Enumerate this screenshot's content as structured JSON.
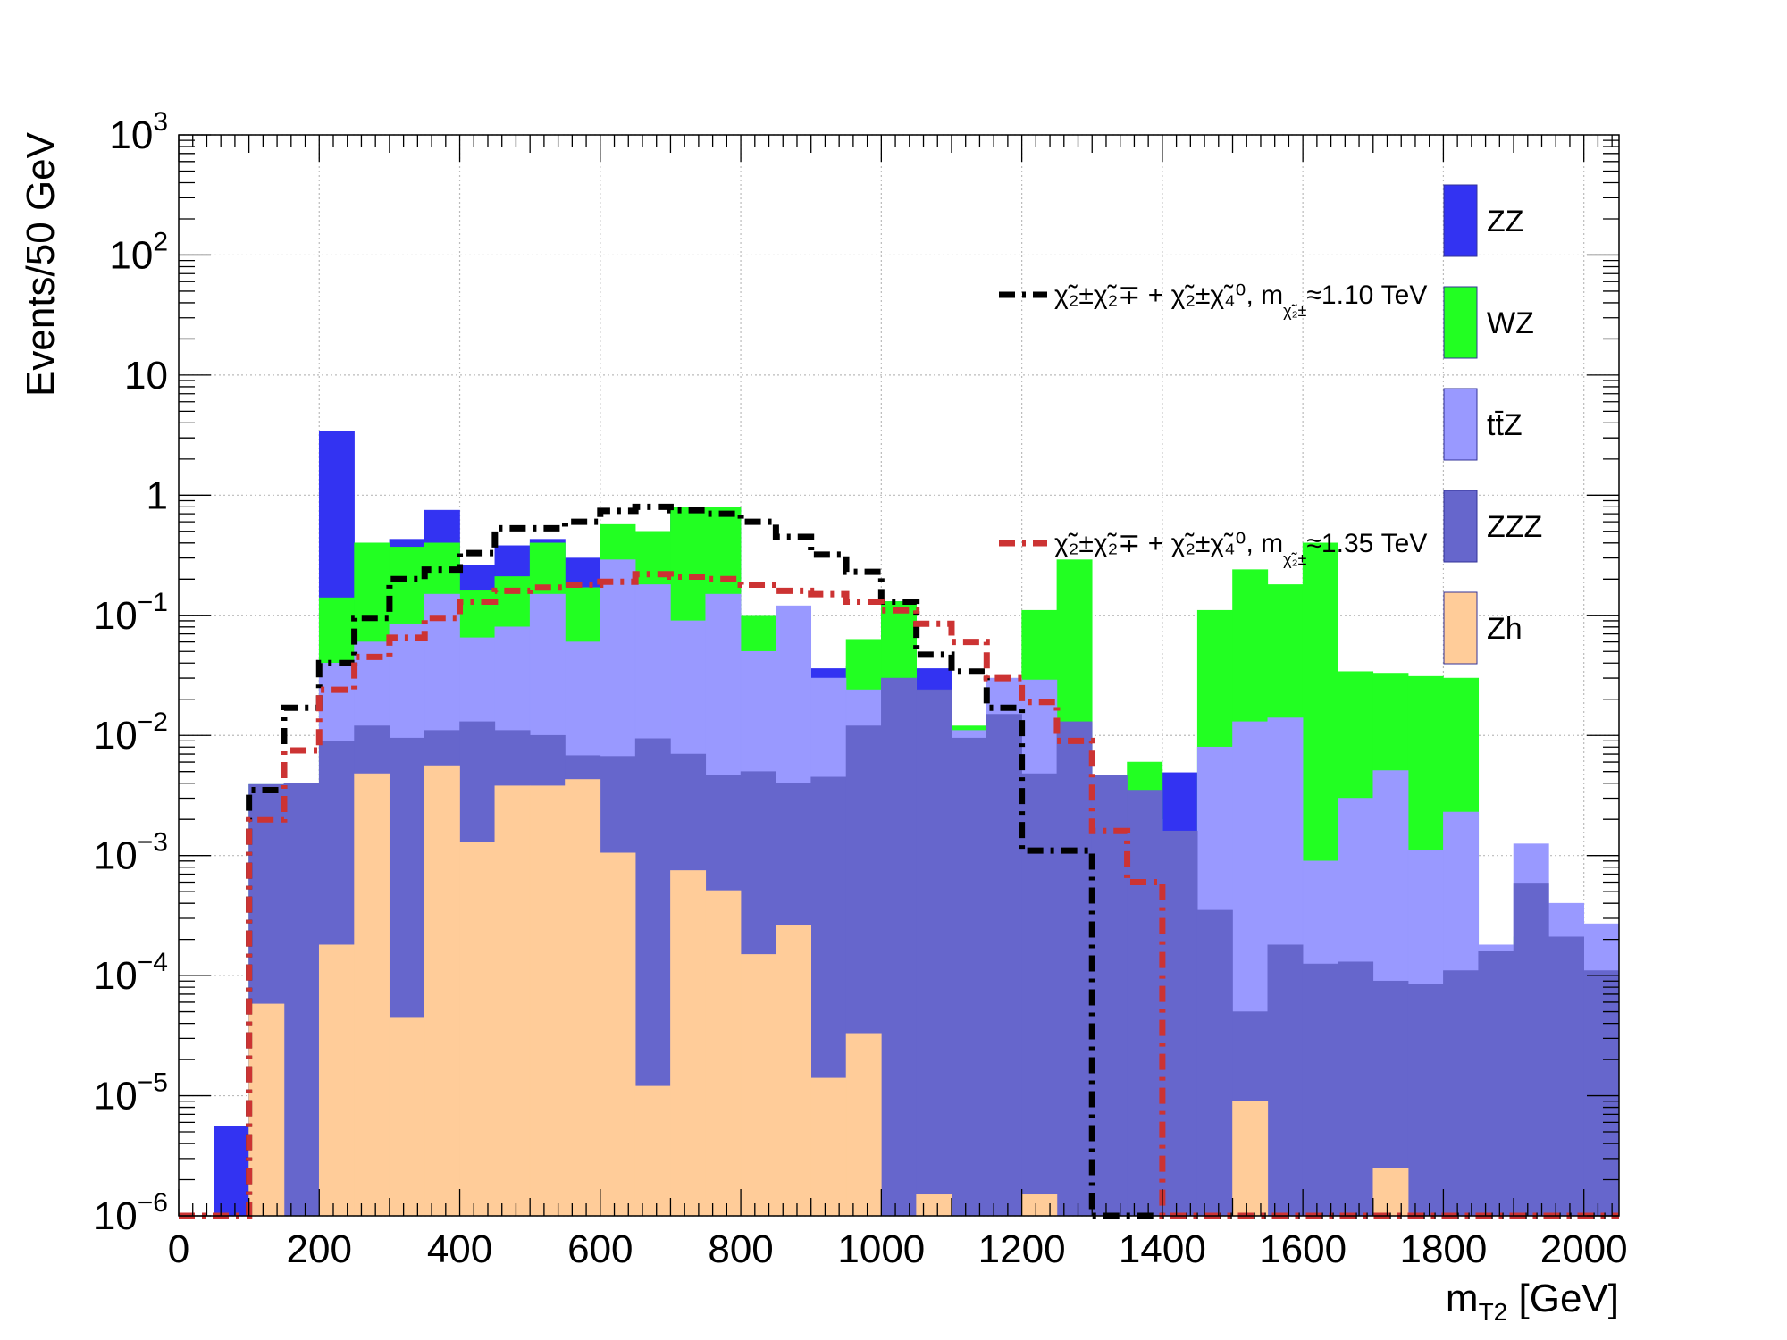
{
  "chart_data": {
    "type": "histogram",
    "ylabel": "Events/50 GeV",
    "xlabel": "m",
    "xlabel_sub": "T2",
    "xlabel_unit": "[GeV]",
    "xlim": [
      0,
      2050
    ],
    "ylim": [
      1e-06,
      1000
    ],
    "yscale": "log",
    "grid": true,
    "bin_width": 50,
    "x_ticks": [
      0,
      200,
      400,
      600,
      800,
      1000,
      1200,
      1400,
      1600,
      1800,
      2000
    ],
    "y_ticks": [
      {
        "value": 1e-06,
        "base": "10",
        "exp": "−6"
      },
      {
        "value": 1e-05,
        "base": "10",
        "exp": "−5"
      },
      {
        "value": 0.0001,
        "base": "10",
        "exp": "−4"
      },
      {
        "value": 0.001,
        "base": "10",
        "exp": "−3"
      },
      {
        "value": 0.01,
        "base": "10",
        "exp": "−2"
      },
      {
        "value": 0.1,
        "base": "10",
        "exp": "−1"
      },
      {
        "value": 1,
        "base": "1",
        "exp": ""
      },
      {
        "value": 10,
        "base": "10",
        "exp": ""
      },
      {
        "value": 100,
        "base": "10",
        "exp": "2"
      },
      {
        "value": 1000,
        "base": "10",
        "exp": "3"
      }
    ],
    "stack_order_bottom_to_top": [
      "Zh",
      "ZZZ",
      "ttZ",
      "WZ",
      "ZZ"
    ],
    "stack_cumulative_tops": {
      "Zh": [
        0,
        0,
        5.8e-05,
        0,
        0.00018,
        0.0048,
        4.5e-05,
        0.0056,
        0.0013,
        0.0038,
        0.0038,
        0.0043,
        0.00105,
        1.2e-05,
        0.00075,
        0.00051,
        0.00015,
        0.00026,
        1.4e-05,
        3.3e-05,
        0,
        1.5e-06,
        0,
        0,
        1.5e-06,
        0,
        0,
        0,
        0,
        0,
        9e-06,
        0,
        0,
        0,
        2.5e-06,
        0,
        0,
        0,
        0,
        0,
        0
      ],
      "ZZZ": [
        0,
        0,
        0.0039,
        0.004,
        0.009,
        0.012,
        0.0095,
        0.011,
        0.013,
        0.011,
        0.01,
        0.0068,
        0.0067,
        0.0094,
        0.007,
        0.0047,
        0.005,
        0.004,
        0.0045,
        0.012,
        0.03,
        0.024,
        0.0095,
        0.015,
        0.0048,
        0.013,
        0.0047,
        0.0035,
        0.0016,
        0.00035,
        5e-05,
        0.00018,
        0.000125,
        0.00013,
        9e-05,
        8.5e-05,
        0.00011,
        0.00016,
        0.00059,
        0.00021,
        0.00011
      ],
      "ttZ": [
        0,
        0,
        0.0039,
        0.004,
        0.04,
        0.06,
        0.085,
        0.15,
        0.065,
        0.08,
        0.15,
        0.06,
        0.29,
        0.18,
        0.09,
        0.15,
        0.05,
        0.12,
        0.03,
        0.024,
        0.017,
        0.011,
        0.011,
        0.03,
        0.029,
        0.009,
        0.0004,
        0.002,
        0.0015,
        0.008,
        0.013,
        0.014,
        0.0009,
        0.003,
        0.0051,
        0.0011,
        0.0023,
        0.00018,
        0.00125,
        0.0004,
        0.00027
      ],
      "WZ": [
        0,
        0,
        0.0039,
        0.004,
        0.14,
        0.4,
        0.37,
        0.4,
        0.16,
        0.21,
        0.4,
        0.17,
        0.57,
        0.5,
        0.8,
        0.8,
        0.1,
        0.07,
        0.021,
        0.063,
        0.13,
        0.016,
        0.012,
        0.01,
        0.11,
        0.29,
        0.0046,
        0.006,
        0.00036,
        0.11,
        0.24,
        0.18,
        0.4,
        0.034,
        0.033,
        0.031,
        0.03,
        1.7e-05,
        0.00021,
        0.00011,
        0.00014
      ],
      "ZZ": [
        0,
        5.6e-06,
        0.0039,
        0.004,
        3.4,
        0.4,
        0.43,
        0.75,
        0.26,
        0.38,
        0.43,
        0.3,
        0.37,
        0.18,
        0.8,
        0.8,
        0.1,
        0.015,
        0.036,
        0.038,
        0.13,
        0.036,
        0.009,
        0.014,
        0.0036,
        0.0024,
        0.0023,
        0.0036,
        0.0049,
        0.0012,
        0.00075,
        0.00062,
        0.001,
        0.00021,
        0.00023,
        0.00022,
        0.000105,
        8.3e-05,
        2.9e-05,
        0.0002,
        0.000135
      ]
    },
    "signal_series": [
      {
        "name": "m≈ 1.10 TeV",
        "color": "#000000",
        "values": [
          1e-06,
          1e-06,
          0.0035,
          0.017,
          0.04,
          0.095,
          0.2,
          0.24,
          0.33,
          0.53,
          0.53,
          0.6,
          0.74,
          0.8,
          0.75,
          0.7,
          0.6,
          0.45,
          0.32,
          0.23,
          0.13,
          0.047,
          0.034,
          0.017,
          0.0011,
          0.0011,
          1e-06,
          1e-06,
          1e-06,
          1e-06,
          1e-06,
          1e-06,
          1e-06,
          1e-06,
          1e-06,
          1e-06,
          1e-06,
          1e-06,
          1e-06,
          1e-06,
          1e-06
        ]
      },
      {
        "name": "m≈ 1.35 TeV",
        "color": "#cc3333",
        "values": [
          1e-06,
          1e-06,
          0.002,
          0.0075,
          0.024,
          0.045,
          0.065,
          0.095,
          0.13,
          0.16,
          0.17,
          0.18,
          0.19,
          0.22,
          0.21,
          0.2,
          0.18,
          0.16,
          0.15,
          0.13,
          0.11,
          0.085,
          0.06,
          0.03,
          0.019,
          0.009,
          0.0016,
          0.0006,
          1e-06,
          1e-06,
          1e-06,
          1e-06,
          1e-06,
          1e-06,
          1e-06,
          1e-06,
          1e-06,
          1e-06,
          1e-06,
          1e-06,
          1e-06
        ]
      }
    ],
    "legend": {
      "placement": "top-right",
      "entries": [
        {
          "key": "ZZ",
          "label": "ZZ",
          "color": "#3333f2"
        },
        {
          "key": "WZ",
          "label": "WZ",
          "color": "#22ff22"
        },
        {
          "key": "ttZ",
          "label": "tt̄Z",
          "color": "#9999ff"
        },
        {
          "key": "ZZZ",
          "label": "ZZZ",
          "color": "#6666cc"
        },
        {
          "key": "Zh",
          "label": "Zh",
          "color": "#ffcc99"
        }
      ]
    },
    "signal_labels": [
      {
        "prefix": "χ̃₂±χ̃₂∓ + χ̃₂±χ̃₄⁰, m",
        "sub": "χ̃₂±",
        "suffix": "≈1.10 TeV"
      },
      {
        "prefix": "χ̃₂±χ̃₂∓ + χ̃₂±χ̃₄⁰, m",
        "sub": "χ̃₂±",
        "suffix": "≈1.35 TeV"
      }
    ]
  }
}
